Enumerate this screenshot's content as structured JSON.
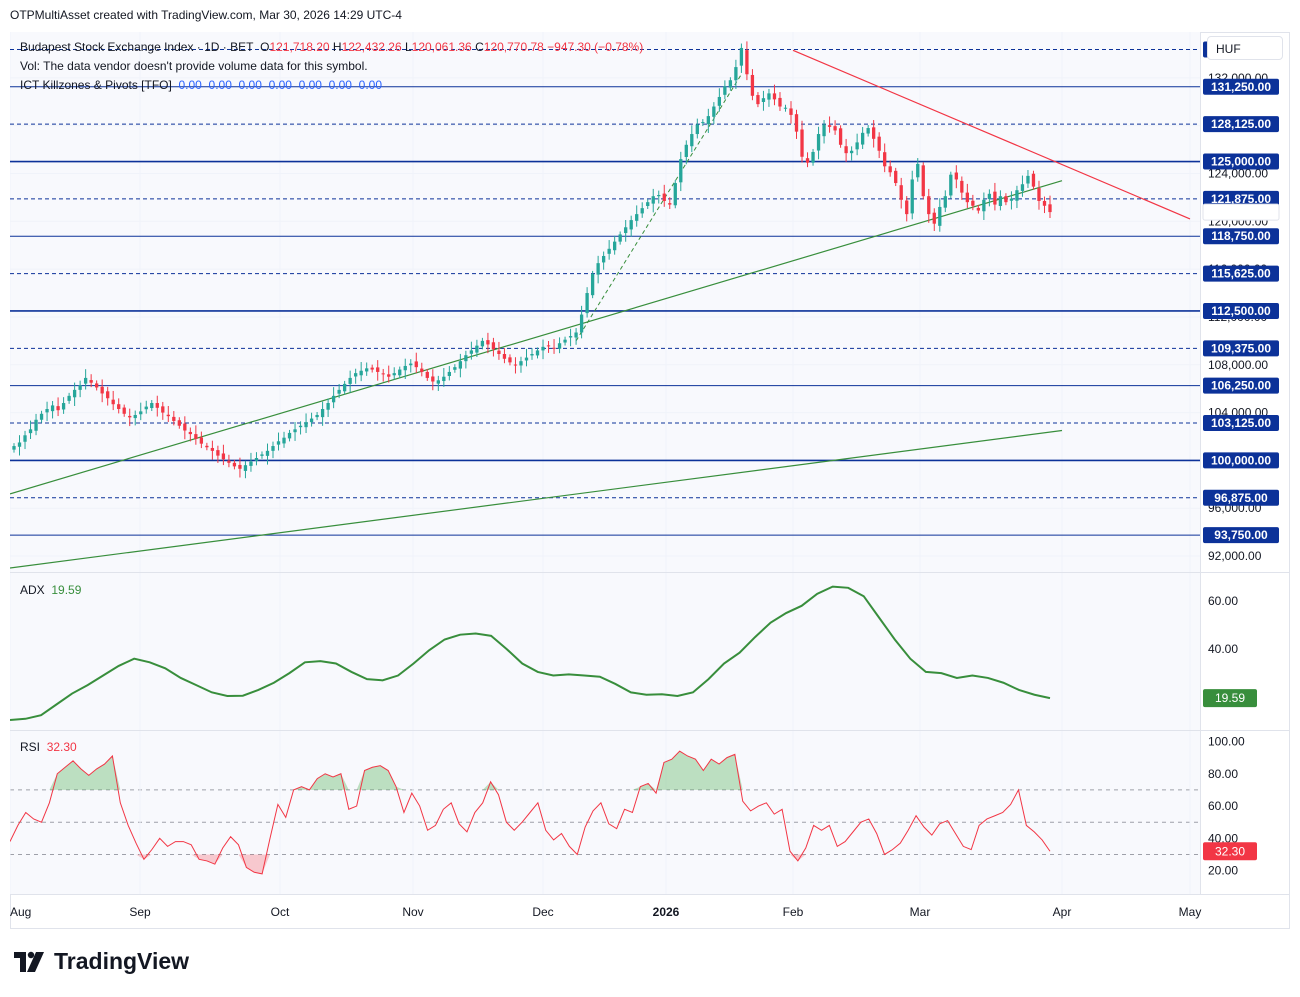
{
  "header": {
    "credit": "OTPMultiAsset created with TradingView.com, Mar 30, 2026 14:29 UTC-4"
  },
  "legend": {
    "symbol": "Budapest Stock Exchange Index · 1D · BET",
    "o_label": "O",
    "o_value": "121,718.20",
    "h_label": "H",
    "h_value": "122,432.26",
    "l_label": "L",
    "l_value": "120,061.36",
    "c_label": "C",
    "c_value": "120,770.78",
    "change": "−947.30 (−0.78%)",
    "vol_text": "Vol: The data vendor doesn't provide volume data for this symbol.",
    "indicator_name": "ICT Killzones & Pivots [TFO]",
    "indicator_values": "0.00  0.00  0.00  0.00  0.00  0.00  0.00"
  },
  "currency": "HUF",
  "brand": {
    "name": "TradingView"
  },
  "colors": {
    "up": "#26a69a",
    "down": "#f23645",
    "adx": "#388e3c",
    "rsi": "#f23645",
    "pivot_line": "#0c3299",
    "trend_green": "#388e3c",
    "trend_red": "#f23645"
  },
  "chart_data": [
    {
      "type": "candlestick",
      "title": "Budapest Stock Exchange Index · 1D · BET",
      "ylim": [
        91000,
        135500
      ],
      "x_ticks": [
        "Aug",
        "Sep",
        "Oct",
        "Nov",
        "Dec",
        "2026",
        "Feb",
        "Mar",
        "Apr",
        "May"
      ],
      "y_ticks": [
        "132,000.00",
        "128,000.00",
        "124,000.00",
        "120,000.00",
        "116,000.00",
        "112,000.00",
        "108,000.00",
        "104,000.00",
        "100,000.00",
        "96,000.00",
        "92,000.00"
      ],
      "last_close": 120770.78,
      "pivot_levels": [
        {
          "label": "134,375.00",
          "value": 134375,
          "style": "dashed"
        },
        {
          "label": "131,250.00",
          "value": 131250,
          "style": "solid"
        },
        {
          "label": "128,125.00",
          "value": 128125,
          "style": "dashed"
        },
        {
          "label": "125,000.00",
          "value": 125000,
          "style": "solid-thick"
        },
        {
          "label": "121,875.00",
          "value": 121875,
          "style": "dashed"
        },
        {
          "label": "118,750.00",
          "value": 118750,
          "style": "solid"
        },
        {
          "label": "115,625.00",
          "value": 115625,
          "style": "dashed"
        },
        {
          "label": "112,500.00",
          "value": 112500,
          "style": "solid-thick"
        },
        {
          "label": "109,375.00",
          "value": 109375,
          "style": "dashed"
        },
        {
          "label": "106,250.00",
          "value": 106250,
          "style": "solid"
        },
        {
          "label": "103,125.00",
          "value": 103125,
          "style": "dashed"
        },
        {
          "label": "100,000.00",
          "value": 100000,
          "style": "solid-thick"
        },
        {
          "label": "96,875.00",
          "value": 96875,
          "style": "dashed"
        },
        {
          "label": "93,750.00",
          "value": 93750,
          "style": "solid"
        }
      ],
      "close_series": [
        101200,
        101500,
        102100,
        102600,
        103400,
        103900,
        104300,
        104600,
        104200,
        104800,
        105400,
        105900,
        106300,
        106900,
        106500,
        106100,
        105600,
        105200,
        104700,
        104300,
        103900,
        103600,
        103800,
        104100,
        104500,
        104800,
        104400,
        104000,
        103700,
        103300,
        102900,
        102500,
        102200,
        101800,
        101400,
        101100,
        100800,
        100400,
        100100,
        99800,
        99500,
        99300,
        99600,
        99900,
        100200,
        100500,
        100800,
        101200,
        101600,
        101900,
        102300,
        102600,
        102900,
        103200,
        103500,
        103800,
        104300,
        104800,
        105400,
        105900,
        106400,
        106900,
        107300,
        107500,
        107700,
        107600,
        107400,
        107200,
        107000,
        107300,
        107600,
        107900,
        108100,
        107800,
        107400,
        106900,
        106600,
        106700,
        107000,
        107400,
        107800,
        108300,
        108800,
        109200,
        109600,
        110000,
        109700,
        109300,
        108900,
        108500,
        108200,
        108000,
        108300,
        108600,
        108900,
        109200,
        109500,
        109600,
        109400,
        109800,
        110100,
        110400,
        110700,
        112200,
        114000,
        115600,
        116500,
        117100,
        117700,
        118300,
        118900,
        119500,
        120100,
        120600,
        121100,
        121600,
        122100,
        122200,
        121700,
        121400,
        123200,
        125200,
        126400,
        127300,
        128100,
        128300,
        128800,
        129600,
        130400,
        131300,
        131800,
        132900,
        134500,
        132300,
        130500,
        129800,
        130300,
        130700,
        130200,
        129600,
        129500,
        128900,
        127500,
        125400,
        124900,
        125800,
        127300,
        128100,
        127900,
        127600,
        126400,
        125700,
        125900,
        126600,
        127400,
        127800,
        126900,
        125900,
        124600,
        124100,
        123200,
        121800,
        120600,
        123500,
        124800,
        122100,
        120600,
        119800,
        121200,
        122100,
        123900,
        123500,
        122400,
        121600,
        121300,
        120900,
        121800,
        122300,
        121400,
        122100,
        121600,
        121900,
        122600,
        123100,
        123800,
        122900,
        121700,
        121300,
        120771
      ],
      "trendlines": [
        {
          "name": "rising support (upper)",
          "from": [
            "Aug",
            97200
          ],
          "to": [
            "Apr",
            123400
          ],
          "color": "green"
        },
        {
          "name": "rising support (lower)",
          "from": [
            "Aug",
            91000
          ],
          "to": [
            "Apr",
            102500
          ],
          "color": "green"
        },
        {
          "name": "descending resistance",
          "from": [
            "Feb",
            134300
          ],
          "to": [
            "May",
            120200
          ],
          "color": "red"
        }
      ]
    },
    {
      "type": "line",
      "title": "ADX",
      "series": [
        {
          "name": "ADX",
          "values": [
            10.5,
            11,
            12.5,
            17,
            21.5,
            25,
            29,
            33,
            36,
            34.5,
            32,
            28,
            25,
            22,
            20.5,
            20.6,
            23,
            26,
            30,
            34.5,
            35,
            34,
            30.5,
            27.5,
            27,
            29,
            34,
            39.5,
            44,
            46,
            46.5,
            45.5,
            40,
            34,
            30.5,
            29,
            29.5,
            29,
            28.5,
            25.5,
            22,
            21,
            21.2,
            20.5,
            22,
            27.5,
            34,
            38.5,
            45,
            51,
            55,
            58,
            63,
            66,
            65.5,
            62,
            53,
            44,
            36,
            30.5,
            30,
            28,
            29,
            28,
            26,
            23,
            21,
            19.6
          ]
        }
      ],
      "ylim": [
        8,
        70
      ],
      "y_ticks": [
        "60.00",
        "40.00"
      ],
      "last_value": "19.59"
    },
    {
      "type": "line",
      "title": "RSI",
      "series": [
        {
          "name": "RSI",
          "values": [
            38,
            48,
            56,
            52,
            50,
            62,
            80,
            84,
            88,
            83,
            79,
            83,
            86,
            91,
            62,
            48,
            37,
            27,
            33,
            40,
            35,
            38,
            38,
            36,
            27,
            26,
            24,
            34,
            41,
            36,
            22,
            19,
            18,
            40,
            61,
            53,
            70,
            72,
            70,
            77,
            80,
            78,
            80,
            58,
            60,
            82,
            84,
            85,
            82,
            72,
            56,
            68,
            60,
            45,
            48,
            58,
            62,
            49,
            44,
            56,
            62,
            75,
            67,
            50,
            45,
            50,
            56,
            62,
            45,
            39,
            43,
            35,
            30,
            47,
            57,
            62,
            49,
            46,
            58,
            56,
            72,
            74,
            68,
            87,
            89,
            94,
            91,
            89,
            82,
            89,
            86,
            90,
            92,
            63,
            57,
            60,
            62,
            55,
            58,
            32,
            26,
            34,
            48,
            45,
            48,
            35,
            38,
            44,
            50,
            52,
            43,
            30,
            33,
            37,
            45,
            54,
            47,
            42,
            49,
            51,
            43,
            35,
            33,
            48,
            52,
            54,
            56,
            61,
            70,
            48,
            44,
            39,
            32
          ]
        }
      ],
      "ylim": [
        8,
        104
      ],
      "y_ticks": [
        "100.00",
        "80.00",
        "60.00",
        "40.00",
        "20.00"
      ],
      "last_value": "32.30"
    }
  ]
}
